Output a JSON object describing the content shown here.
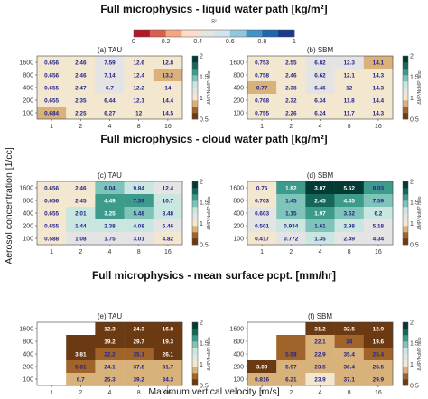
{
  "figure": {
    "ylabel": "Aerosol concentration [1/cc]",
    "xlabel": "Maximum vertical velocity [m/s]",
    "colorbar_label": "ΔMP/NoMP ratio"
  },
  "r2_colorbar": {
    "label": "R²",
    "ticks": [
      "0",
      "0.2",
      "0.4",
      "0.6",
      "0.8",
      "1"
    ],
    "colors": [
      "#b2182b",
      "#d6604d",
      "#f4a582",
      "#fddbc7",
      "#e8e3dc",
      "#d1e5f0",
      "#92c5de",
      "#4393c3",
      "#2166ac",
      "#1b3a8c"
    ]
  },
  "ratio_colorbar": {
    "ticks": [
      "0.5",
      "1",
      "1.5",
      "2"
    ],
    "colors": [
      "#6b3a12",
      "#a0642a",
      "#d8b27a",
      "#f3e7cf",
      "#e4e4e4",
      "#c9e6e0",
      "#7fc4b8",
      "#3d9b8c",
      "#14675a",
      "#023b33"
    ]
  },
  "chart_data": [
    {
      "type": "heatmap",
      "row_title": "Full microphysics - liquid water path [kg/m²]",
      "title": "(a) TAU",
      "x": [
        "1",
        "2",
        "4",
        "8",
        "16"
      ],
      "y": [
        "1600",
        "800",
        "400",
        "200",
        "100"
      ],
      "values": [
        [
          "0.656",
          "2.46",
          "7.59",
          "12.6",
          "12.8"
        ],
        [
          "0.656",
          "2.46",
          "7.14",
          "12.4",
          "13.2"
        ],
        [
          "0.655",
          "2.47",
          "6.7",
          "12.2",
          "14"
        ],
        [
          "0.655",
          "2.35",
          "6.44",
          "12.1",
          "14.4"
        ],
        [
          "0.684",
          "2.25",
          "6.27",
          "12",
          "14.5"
        ]
      ],
      "ratio": [
        [
          0.95,
          1.05,
          1.15,
          1.05,
          1.0
        ],
        [
          0.95,
          1.05,
          1.15,
          1.05,
          0.85
        ],
        [
          0.95,
          1.05,
          1.1,
          1.05,
          1.0
        ],
        [
          0.95,
          1.05,
          1.05,
          1.05,
          1.0
        ],
        [
          0.85,
          1.05,
          1.05,
          1.0,
          1.0
        ]
      ]
    },
    {
      "type": "heatmap",
      "title": "(b) SBM",
      "x": [
        "1",
        "2",
        "4",
        "8",
        "16"
      ],
      "y": [
        "1600",
        "800",
        "400",
        "200",
        "100"
      ],
      "values": [
        [
          "0.753",
          "2.55",
          "6.82",
          "12.3",
          "14.1"
        ],
        [
          "0.758",
          "2.46",
          "6.62",
          "12.1",
          "14.3"
        ],
        [
          "0.77",
          "2.38",
          "6.46",
          "12",
          "14.3"
        ],
        [
          "0.768",
          "2.32",
          "6.34",
          "11.8",
          "14.4"
        ],
        [
          "0.755",
          "2.26",
          "6.24",
          "11.7",
          "14.3"
        ]
      ],
      "ratio": [
        [
          0.95,
          1.05,
          1.2,
          1.1,
          0.85
        ],
        [
          0.95,
          1.05,
          1.15,
          1.05,
          1.0
        ],
        [
          0.85,
          1.05,
          1.1,
          1.05,
          1.0
        ],
        [
          0.95,
          1.05,
          1.05,
          1.05,
          1.0
        ],
        [
          0.95,
          1.0,
          1.05,
          1.0,
          1.0
        ]
      ]
    },
    {
      "type": "heatmap",
      "row_title": "Full microphysics - cloud water path [kg/m²]",
      "title": "(c) TAU",
      "x": [
        "1",
        "2",
        "4",
        "8",
        "16"
      ],
      "y": [
        "1600",
        "800",
        "400",
        "200",
        "100"
      ],
      "values": [
        [
          "0.656",
          "2.46",
          "6.04",
          "9.84",
          "12.4"
        ],
        [
          "0.656",
          "2.45",
          "4.49",
          "7.39",
          "10.7"
        ],
        [
          "0.655",
          "2.01",
          "3.25",
          "5.48",
          "8.48"
        ],
        [
          "0.655",
          "1.44",
          "2.38",
          "4.08",
          "6.46"
        ],
        [
          "0.588",
          "1.08",
          "1.75",
          "3.01",
          "4.82"
        ]
      ],
      "ratio": [
        [
          0.95,
          1.05,
          1.4,
          1.3,
          1.1
        ],
        [
          0.95,
          1.05,
          1.6,
          1.55,
          1.35
        ],
        [
          0.95,
          1.3,
          1.65,
          1.5,
          1.35
        ],
        [
          0.95,
          1.25,
          1.35,
          1.3,
          1.2
        ],
        [
          1.0,
          1.1,
          1.15,
          1.1,
          1.05
        ]
      ]
    },
    {
      "type": "heatmap",
      "title": "(d) SBM",
      "x": [
        "1",
        "2",
        "4",
        "8",
        "16"
      ],
      "y": [
        "1600",
        "800",
        "400",
        "200",
        "100"
      ],
      "values": [
        [
          "0.75",
          "1.82",
          "3.07",
          "5.52",
          "9.03"
        ],
        [
          "0.703",
          "1.45",
          "2.45",
          "4.45",
          "7.59"
        ],
        [
          "0.603",
          "1.15",
          "1.97",
          "3.62",
          "6.2"
        ],
        [
          "0.501",
          "0.934",
          "1.61",
          "2.98",
          "5.18"
        ],
        [
          "0.417",
          "0.772",
          "1.35",
          "2.49",
          "4.34"
        ]
      ],
      "ratio": [
        [
          1.0,
          1.6,
          2.0,
          1.95,
          1.55
        ],
        [
          1.05,
          1.5,
          1.75,
          1.7,
          1.45
        ],
        [
          1.1,
          1.45,
          1.6,
          1.45,
          1.3
        ],
        [
          1.1,
          1.35,
          1.45,
          1.3,
          1.2
        ],
        [
          1.05,
          1.2,
          1.25,
          1.15,
          1.1
        ]
      ]
    },
    {
      "type": "heatmap",
      "row_title": "Full microphysics - mean surface pcpt. [mm/hr]",
      "title": "(e) TAU",
      "x": [
        "1",
        "2",
        "4",
        "8",
        "16"
      ],
      "y": [
        "1600",
        "800",
        "400",
        "200",
        "100"
      ],
      "values": [
        [
          "",
          "",
          "12.3",
          "24.3",
          "16.8"
        ],
        [
          "",
          "",
          "19.2",
          "29.7",
          "19.3"
        ],
        [
          "",
          "3.81",
          "22.2",
          "35.1",
          "26.1"
        ],
        [
          "",
          "5.81",
          "24.1",
          "37.8",
          "31.7"
        ],
        [
          "",
          "6.7",
          "25.3",
          "39.2",
          "34.3"
        ]
      ],
      "ratio": [
        [
          null,
          null,
          0.55,
          0.55,
          0.55
        ],
        [
          null,
          0.6,
          0.6,
          0.6,
          0.6
        ],
        [
          null,
          0.6,
          0.75,
          0.75,
          0.6
        ],
        [
          null,
          0.75,
          0.85,
          0.85,
          0.8
        ],
        [
          null,
          0.85,
          0.9,
          0.9,
          0.9
        ]
      ]
    },
    {
      "type": "heatmap",
      "title": "(f) SBM",
      "x": [
        "1",
        "2",
        "4",
        "8",
        "16"
      ],
      "y": [
        "1600",
        "800",
        "400",
        "200",
        "100"
      ],
      "values": [
        [
          "",
          "",
          "31.2",
          "32.5",
          "12.9"
        ],
        [
          "",
          "",
          "22.1",
          "34",
          "19.6"
        ],
        [
          "",
          "5.58",
          "22.9",
          "35.4",
          "25.4"
        ],
        [
          "3.09",
          "5.97",
          "23.5",
          "36.4",
          "28.5"
        ],
        [
          "0.816",
          "6.21",
          "23.9",
          "37.1",
          "29.9"
        ]
      ],
      "ratio": [
        [
          null,
          null,
          0.55,
          0.55,
          0.55
        ],
        [
          null,
          0.7,
          0.8,
          0.75,
          0.6
        ],
        [
          null,
          0.65,
          0.85,
          0.85,
          0.75
        ],
        [
          0.6,
          0.85,
          0.9,
          0.88,
          0.85
        ],
        [
          0.82,
          0.92,
          0.95,
          0.92,
          0.9
        ]
      ]
    }
  ]
}
